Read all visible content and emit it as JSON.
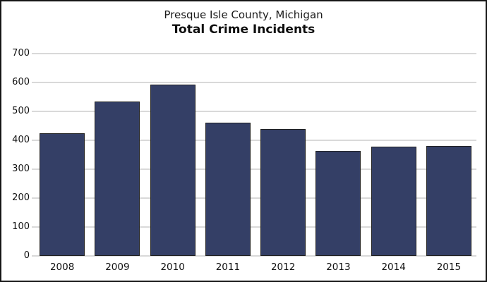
{
  "chart_data": {
    "type": "bar",
    "subtitle": "Presque Isle County, Michigan",
    "title": "Total Crime Incidents",
    "categories": [
      "2008",
      "2009",
      "2010",
      "2011",
      "2012",
      "2013",
      "2014",
      "2015"
    ],
    "values": [
      425,
      535,
      592,
      462,
      440,
      363,
      377,
      380
    ],
    "xlabel": "",
    "ylabel": "",
    "ylim": [
      0,
      700
    ],
    "yticks": [
      0,
      100,
      200,
      300,
      400,
      500,
      600,
      700
    ],
    "grid": "horizontal",
    "legend": "none",
    "colors": {
      "bar_fill": "#343F66",
      "bar_border": "#202020",
      "gridline": "#D9D9D9",
      "text": "#111111",
      "frame_border": "#161616",
      "background": "#FFFFFF"
    }
  }
}
